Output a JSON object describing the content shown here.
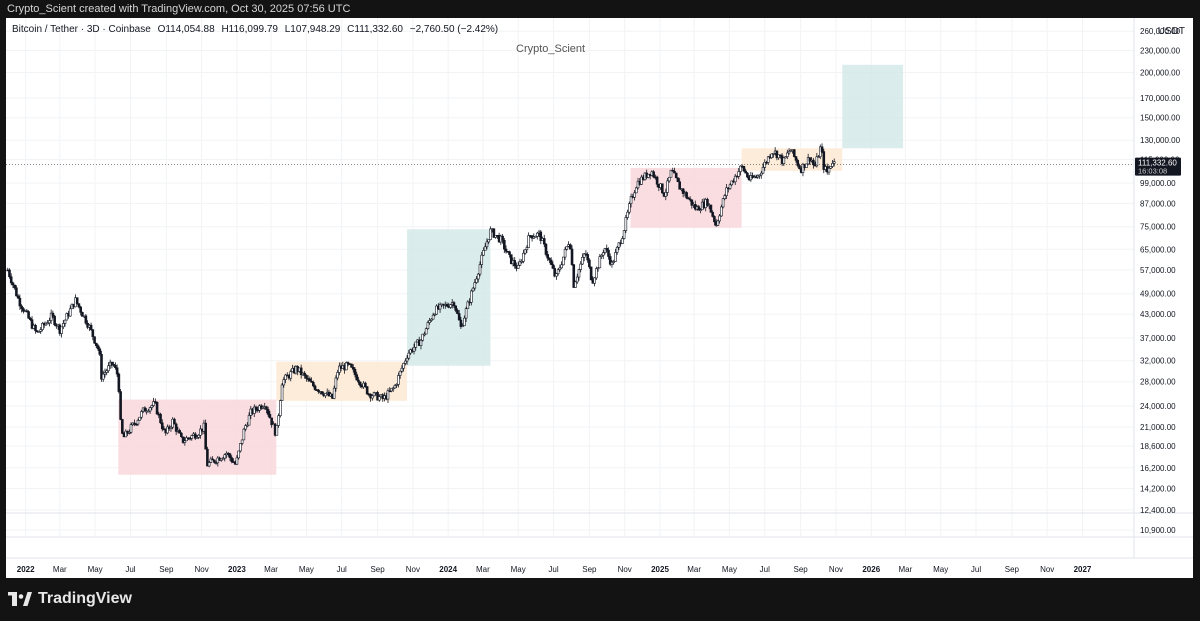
{
  "header": {
    "credit": "Crypto_Scient created with TradingView.com, Oct 30, 2025 07:56 UTC"
  },
  "legend": {
    "symbol": "Bitcoin / Tether · 3D · Coinbase",
    "open": "O114,054.88",
    "high": "H116,099.79",
    "low": "L107,948.29",
    "close": "C111,332.60",
    "change": "−2,760.50 (−2.42%)"
  },
  "watermark": "Crypto_Scient",
  "currency": "USDT",
  "price_tag": {
    "price": "111,332.60",
    "countdown": "16:03:08"
  },
  "footer": {
    "brand": "TradingView"
  },
  "colors": {
    "up": "#131722",
    "down": "#131722",
    "box_red": "#f9d7dc",
    "box_orange": "#fde9d2",
    "box_teal": "#d3e9e8",
    "tag_bg": "#131722"
  },
  "chart_data": {
    "type": "candlestick",
    "scale": "log",
    "ylim": [
      10500,
      262000
    ],
    "y_ticks": [
      "260,000.00",
      "230,000.00",
      "200,000.00",
      "170,000.00",
      "150,000.00",
      "130,000.00",
      "115,000.00",
      "99,000.00",
      "87,000.00",
      "75,000.00",
      "65,000.00",
      "57,000.00",
      "49,000.00",
      "43,000.00",
      "37,000.00",
      "32,000.00",
      "28,000.00",
      "24,000.00",
      "21,000.00",
      "18,600.00",
      "16,200.00",
      "14,200.00",
      "12,400.00",
      "10,900.00"
    ],
    "x_ticks": [
      {
        "label": "2022",
        "date": "2022-01-01",
        "bold": true
      },
      {
        "label": "Mar",
        "date": "2022-03-01"
      },
      {
        "label": "May",
        "date": "2022-05-01"
      },
      {
        "label": "Jul",
        "date": "2022-07-01"
      },
      {
        "label": "Sep",
        "date": "2022-09-01"
      },
      {
        "label": "Nov",
        "date": "2022-11-01"
      },
      {
        "label": "2023",
        "date": "2023-01-01",
        "bold": true
      },
      {
        "label": "Mar",
        "date": "2023-03-01"
      },
      {
        "label": "May",
        "date": "2023-05-01"
      },
      {
        "label": "Jul",
        "date": "2023-07-01"
      },
      {
        "label": "Sep",
        "date": "2023-09-01"
      },
      {
        "label": "Nov",
        "date": "2023-11-01"
      },
      {
        "label": "2024",
        "date": "2024-01-01",
        "bold": true
      },
      {
        "label": "Mar",
        "date": "2024-03-01"
      },
      {
        "label": "May",
        "date": "2024-05-01"
      },
      {
        "label": "Jul",
        "date": "2024-07-01"
      },
      {
        "label": "Sep",
        "date": "2024-09-01"
      },
      {
        "label": "Nov",
        "date": "2024-11-01"
      },
      {
        "label": "2025",
        "date": "2025-01-01",
        "bold": true
      },
      {
        "label": "Mar",
        "date": "2025-03-01"
      },
      {
        "label": "May",
        "date": "2025-05-01"
      },
      {
        "label": "Jul",
        "date": "2025-07-01"
      },
      {
        "label": "Sep",
        "date": "2025-09-01"
      },
      {
        "label": "Nov",
        "date": "2025-11-01"
      },
      {
        "label": "2026",
        "date": "2026-01-01",
        "bold": true
      },
      {
        "label": "Mar",
        "date": "2026-03-01"
      },
      {
        "label": "May",
        "date": "2026-05-01"
      },
      {
        "label": "Jul",
        "date": "2026-07-01"
      },
      {
        "label": "Sep",
        "date": "2026-09-01"
      },
      {
        "label": "Nov",
        "date": "2026-11-01"
      },
      {
        "label": "2027",
        "date": "2027-01-01",
        "bold": true
      }
    ],
    "xlim": [
      "2021-11-28",
      "2027-03-31"
    ],
    "boxes": [
      {
        "color": "box_red",
        "start": "2022-06-10",
        "end": "2023-03-10",
        "low": 15500,
        "high": 25000
      },
      {
        "color": "box_orange",
        "start": "2023-03-10",
        "end": "2023-10-22",
        "low": 24800,
        "high": 31800
      },
      {
        "color": "box_teal",
        "start": "2023-10-22",
        "end": "2024-03-14",
        "low": 31000,
        "high": 73800
      },
      {
        "color": "box_red",
        "start": "2024-11-11",
        "end": "2025-05-22",
        "low": 74500,
        "high": 109000
      },
      {
        "color": "box_orange",
        "start": "2025-05-22",
        "end": "2025-11-12",
        "low": 107000,
        "high": 123500
      },
      {
        "color": "box_teal",
        "start": "2025-11-12",
        "end": "2026-02-25",
        "low": 123500,
        "high": 210000
      }
    ],
    "path_points": [
      [
        "2021-12-01",
        57000
      ],
      [
        "2021-12-20",
        47000
      ],
      [
        "2022-01-20",
        38000
      ],
      [
        "2022-02-15",
        42500
      ],
      [
        "2022-03-01",
        39000
      ],
      [
        "2022-03-28",
        47000
      ],
      [
        "2022-04-20",
        40000
      ],
      [
        "2022-05-08",
        34000
      ],
      [
        "2022-05-12",
        29000
      ],
      [
        "2022-05-31",
        31500
      ],
      [
        "2022-06-10",
        29000
      ],
      [
        "2022-06-14",
        21500
      ],
      [
        "2022-06-18",
        19500
      ],
      [
        "2022-07-08",
        21500
      ],
      [
        "2022-07-25",
        23500
      ],
      [
        "2022-08-12",
        24300
      ],
      [
        "2022-08-30",
        20000
      ],
      [
        "2022-09-12",
        21800
      ],
      [
        "2022-09-28",
        19200
      ],
      [
        "2022-10-25",
        20200
      ],
      [
        "2022-11-05",
        21000
      ],
      [
        "2022-11-10",
        16500
      ],
      [
        "2022-12-14",
        17800
      ],
      [
        "2022-12-30",
        16500
      ],
      [
        "2023-01-14",
        20800
      ],
      [
        "2023-01-25",
        23000
      ],
      [
        "2023-02-18",
        24500
      ],
      [
        "2023-03-10",
        20000
      ],
      [
        "2023-03-20",
        28000
      ],
      [
        "2023-04-14",
        30500
      ],
      [
        "2023-05-10",
        27500
      ],
      [
        "2023-06-15",
        25200
      ],
      [
        "2023-06-25",
        30500
      ],
      [
        "2023-07-13",
        31000
      ],
      [
        "2023-08-17",
        26000
      ],
      [
        "2023-09-11",
        25100
      ],
      [
        "2023-09-30",
        27000
      ],
      [
        "2023-10-23",
        33500
      ],
      [
        "2023-11-15",
        36500
      ],
      [
        "2023-12-08",
        44000
      ],
      [
        "2024-01-11",
        46500
      ],
      [
        "2024-01-23",
        39500
      ],
      [
        "2024-02-14",
        51500
      ],
      [
        "2024-03-05",
        66000
      ],
      [
        "2024-03-14",
        73000
      ],
      [
        "2024-04-01",
        69000
      ],
      [
        "2024-04-17",
        61000
      ],
      [
        "2024-05-01",
        57500
      ],
      [
        "2024-05-21",
        71000
      ],
      [
        "2024-06-07",
        71500
      ],
      [
        "2024-07-05",
        54000
      ],
      [
        "2024-07-29",
        69500
      ],
      [
        "2024-08-05",
        52000
      ],
      [
        "2024-08-25",
        64000
      ],
      [
        "2024-09-06",
        53000
      ],
      [
        "2024-09-27",
        66000
      ],
      [
        "2024-10-10",
        59000
      ],
      [
        "2024-10-29",
        72000
      ],
      [
        "2024-11-12",
        89000
      ],
      [
        "2024-11-22",
        99000
      ],
      [
        "2024-12-17",
        107000
      ],
      [
        "2025-01-09",
        92000
      ],
      [
        "2025-01-21",
        107000
      ],
      [
        "2025-02-03",
        97000
      ],
      [
        "2025-03-04",
        84000
      ],
      [
        "2025-03-24",
        88000
      ],
      [
        "2025-04-08",
        76000
      ],
      [
        "2025-04-25",
        94000
      ],
      [
        "2025-05-12",
        104000
      ],
      [
        "2025-05-22",
        110000
      ],
      [
        "2025-06-05",
        101000
      ],
      [
        "2025-06-20",
        104000
      ],
      [
        "2025-07-14",
        122000
      ],
      [
        "2025-07-25",
        118000
      ],
      [
        "2025-08-02",
        113000
      ],
      [
        "2025-08-14",
        123000
      ],
      [
        "2025-09-01",
        108000
      ],
      [
        "2025-09-18",
        117000
      ],
      [
        "2025-09-25",
        109000
      ],
      [
        "2025-10-06",
        125000
      ],
      [
        "2025-10-11",
        110000
      ],
      [
        "2025-10-17",
        106000
      ],
      [
        "2025-10-27",
        115000
      ],
      [
        "2025-10-30",
        111332
      ]
    ]
  }
}
